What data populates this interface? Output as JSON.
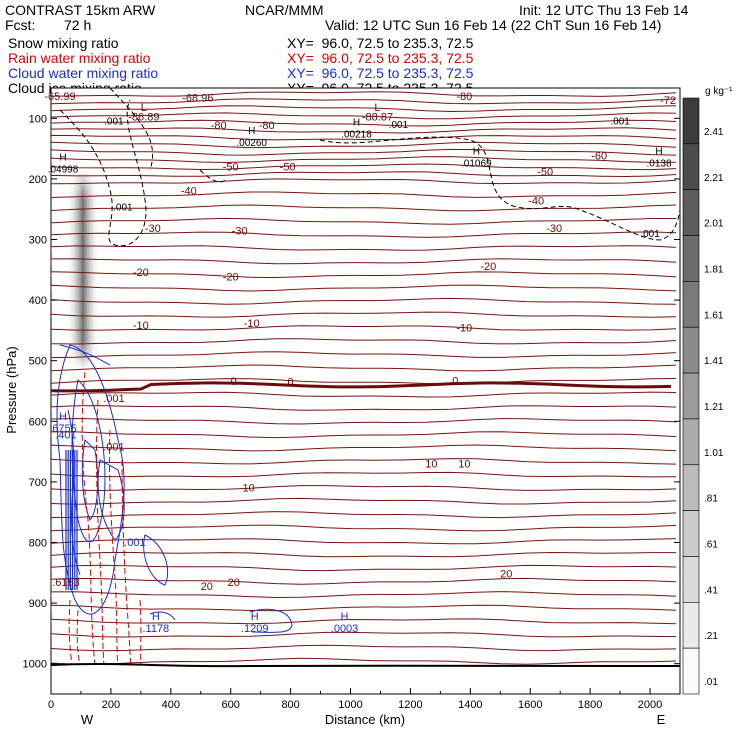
{
  "header": {
    "model": "CONTRAST 15km ARW",
    "org": "NCAR/MMM",
    "init": "Init: 12 UTC Thu 13 Feb 14",
    "fcst_label": "Fcst:",
    "fcst_value": "72 h",
    "valid": "Valid: 12 UTC Sun 16 Feb 14 (22 ChT Sun 16 Feb 14)"
  },
  "fields": [
    {
      "name": "Snow mixing ratio",
      "xy": "XY=  96.0, 72.5 to 235.3, 72.5",
      "color": "#000000"
    },
    {
      "name": "Rain water mixing ratio",
      "xy": "XY=  96.0, 72.5 to 235.3, 72.5",
      "color": "#dd0000"
    },
    {
      "name": "Cloud water mixing ratio",
      "xy": "XY=  96.0, 72.5 to 235.3, 72.5",
      "color": "#1a2dd0"
    },
    {
      "name": "Cloud ice mixing ratio",
      "xy": "XY=  96.0, 72.5 to 235.3, 72.5",
      "color": "#000000"
    }
  ],
  "chart_data": {
    "type": "cross-section contour",
    "xlabel": "Distance (km)",
    "ylabel": "Pressure (hPa)",
    "xlim": [
      0,
      2100
    ],
    "ylim": [
      1050,
      50
    ],
    "x_ticks": [
      "0",
      "200",
      "400",
      "600",
      "800",
      "1000",
      "1200",
      "1400",
      "1600",
      "1800",
      "2000"
    ],
    "y_ticks": [
      "100",
      "200",
      "300",
      "400",
      "500",
      "600",
      "700",
      "800",
      "900",
      "1000"
    ],
    "x_end_labels": {
      "left": "W",
      "right": "E"
    },
    "colorbar": {
      "unit": "g kg⁻¹",
      "labels": [
        "2.41",
        "2.21",
        "2.01",
        "1.81",
        "1.61",
        "1.41",
        "1.21",
        "1.01",
        ".81",
        ".61",
        ".41",
        ".21",
        ".01"
      ]
    },
    "temperature_contours_C": [
      -80,
      -70,
      -60,
      -50,
      -40,
      -30,
      -20,
      -10,
      0,
      10,
      20,
      30
    ],
    "temperature_labels": [
      {
        "text": "-65.99",
        "x": 30,
        "p": 70
      },
      {
        "text": "-68.96",
        "x": 490,
        "p": 72
      },
      {
        "text": "-80",
        "x": 1380,
        "p": 70
      },
      {
        "text": "-72",
        "x": 2060,
        "p": 76
      },
      {
        "text": "-86.89",
        "x": 310,
        "p": 104
      },
      {
        "text": "-88.87",
        "x": 1090,
        "p": 104
      },
      {
        "text": "-80",
        "x": 560,
        "p": 118
      },
      {
        "text": "-80",
        "x": 720,
        "p": 118
      },
      {
        "text": "-60",
        "x": 1830,
        "p": 168
      },
      {
        "text": "-50",
        "x": 600,
        "p": 186
      },
      {
        "text": "-50",
        "x": 790,
        "p": 186
      },
      {
        "text": "-50",
        "x": 1650,
        "p": 194
      },
      {
        "text": "-40",
        "x": 460,
        "p": 226
      },
      {
        "text": "-40",
        "x": 1620,
        "p": 242
      },
      {
        "text": "-30",
        "x": 340,
        "p": 288
      },
      {
        "text": "-30",
        "x": 630,
        "p": 292
      },
      {
        "text": "-30",
        "x": 1680,
        "p": 288
      },
      {
        "text": "-20",
        "x": 300,
        "p": 360
      },
      {
        "text": "-20",
        "x": 600,
        "p": 368
      },
      {
        "text": "-20",
        "x": 1460,
        "p": 350
      },
      {
        "text": "-10",
        "x": 300,
        "p": 448
      },
      {
        "text": "-10",
        "x": 670,
        "p": 444
      },
      {
        "text": "-10",
        "x": 1380,
        "p": 452
      },
      {
        "text": "0",
        "x": 610,
        "p": 540
      },
      {
        "text": "0",
        "x": 800,
        "p": 541
      },
      {
        "text": "0",
        "x": 1350,
        "p": 539
      },
      {
        "text": "10",
        "x": 1270,
        "p": 676
      },
      {
        "text": "10",
        "x": 1380,
        "p": 676
      },
      {
        "text": "10",
        "x": 660,
        "p": 716
      },
      {
        "text": "20",
        "x": 520,
        "p": 878
      },
      {
        "text": "20",
        "x": 610,
        "p": 872
      },
      {
        "text": "20",
        "x": 1520,
        "p": 858
      }
    ],
    "high_markers": [
      {
        "text": "H",
        "x": 40,
        "p": 186,
        "value": ".04998"
      },
      {
        "text": "H",
        "x": 670,
        "p": 142,
        "value": ".00260"
      },
      {
        "text": "H",
        "x": 1020,
        "p": 128,
        "value": ".00218"
      },
      {
        "text": "H",
        "x": 1420,
        "p": 176,
        "value": ".01069"
      },
      {
        "text": "H",
        "x": 2030,
        "p": 176,
        "value": ".0138"
      },
      {
        "text": "H",
        "x": 40,
        "p": 614,
        "value": ".6755"
      },
      {
        "text": "H",
        "x": 350,
        "p": 944,
        "value": ".1178"
      },
      {
        "text": "H",
        "x": 680,
        "p": 944,
        "value": ".1209"
      },
      {
        "text": "H",
        "x": 980,
        "p": 944,
        "value": ".0003"
      }
    ],
    "low_markers": [
      {
        "text": "L",
        "x": 310,
        "p": 88
      },
      {
        "text": "L",
        "x": 1090,
        "p": 88
      }
    ],
    "ice_labels": [
      {
        "text": ".001",
        "x": 210,
        "p": 110
      },
      {
        "text": ".001",
        "x": 1160,
        "p": 116
      },
      {
        "text": ".001",
        "x": 1900,
        "p": 110
      },
      {
        "text": ".001",
        "x": 240,
        "p": 252
      },
      {
        "text": ".001",
        "x": 2000,
        "p": 296
      }
    ],
    "cloud_water_labels": [
      {
        "text": ".401",
        "x": 50,
        "p": 628
      },
      {
        "text": ".001",
        "x": 280,
        "p": 806
      }
    ],
    "rain_labels": [
      {
        "text": ".001",
        "x": 210,
        "p": 568
      },
      {
        "text": ".001",
        "x": 210,
        "p": 648
      },
      {
        "text": ".6153",
        "x": 50,
        "p": 872
      }
    ]
  }
}
